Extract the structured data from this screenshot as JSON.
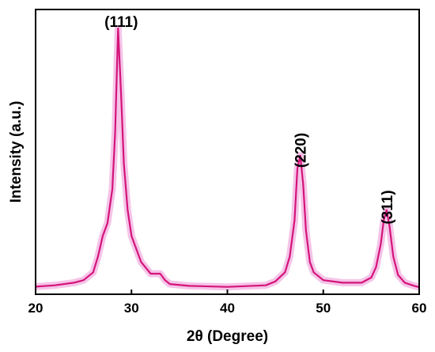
{
  "chart_data": {
    "type": "line",
    "title": "",
    "xlabel": "2θ (Degree)",
    "ylabel": "Intensity (a.u.)",
    "xlim": [
      20,
      60
    ],
    "ylim": [
      0,
      1
    ],
    "xticks": [
      20,
      30,
      40,
      50,
      60
    ],
    "xtick_labels": [
      "20",
      "30",
      "40",
      "50",
      "60"
    ],
    "y_tick_labels_shown": false,
    "grid": false,
    "legend": "none",
    "colors": {
      "line": "#d4147a",
      "shade": "#f2b0e0"
    },
    "series": [
      {
        "x": [
          20,
          22,
          24,
          25,
          26,
          26.5,
          27,
          27.5,
          28,
          28.3,
          28.6,
          28.9,
          29.2,
          29.6,
          30,
          31,
          32,
          33,
          33.5,
          34,
          36,
          40,
          44,
          45,
          46,
          46.5,
          47,
          47.3,
          47.6,
          47.9,
          48.2,
          48.6,
          49,
          50,
          52,
          54,
          55,
          55.5,
          56,
          56.3,
          56.6,
          56.9,
          57.3,
          57.8,
          58.5,
          59.5,
          60
        ],
        "y": [
          0.005,
          0.01,
          0.02,
          0.03,
          0.06,
          0.12,
          0.2,
          0.25,
          0.38,
          0.6,
          1.0,
          0.76,
          0.48,
          0.3,
          0.2,
          0.1,
          0.055,
          0.055,
          0.03,
          0.015,
          0.008,
          0.004,
          0.01,
          0.025,
          0.06,
          0.12,
          0.26,
          0.46,
          0.51,
          0.4,
          0.22,
          0.1,
          0.06,
          0.03,
          0.02,
          0.02,
          0.04,
          0.08,
          0.17,
          0.26,
          0.3,
          0.24,
          0.12,
          0.05,
          0.02,
          0.008,
          0.003
        ]
      }
    ],
    "annotations": [
      {
        "text": "(111)",
        "x": 28.6
      },
      {
        "text": "(220)",
        "x": 47.6
      },
      {
        "text": "(311)",
        "x": 56.6
      }
    ]
  }
}
